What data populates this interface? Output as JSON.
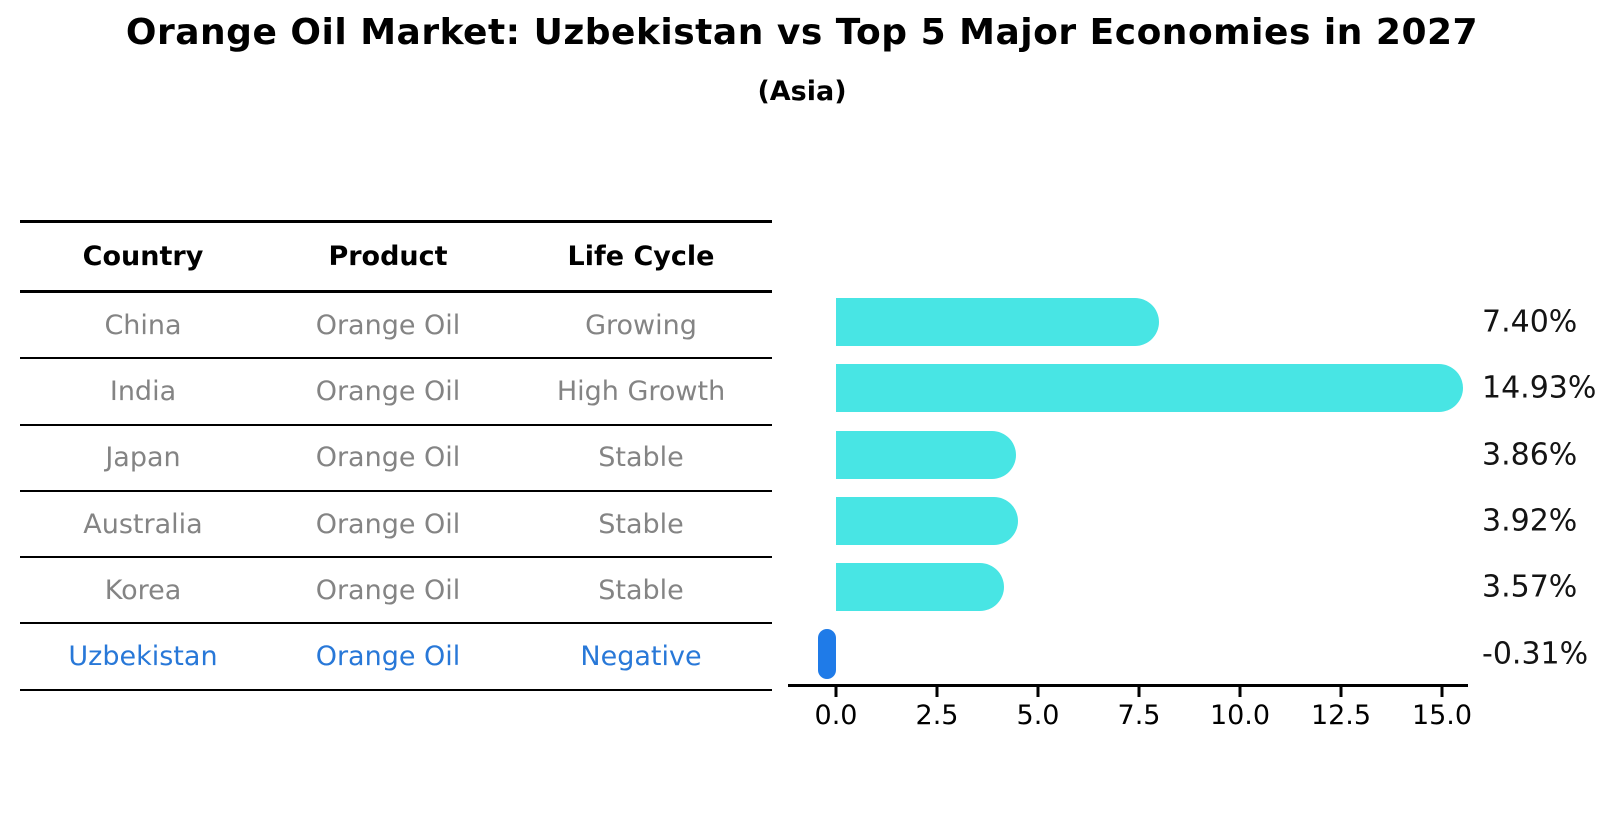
{
  "header": {
    "title": "Orange Oil Market: Uzbekistan vs Top 5 Major Economies in 2027",
    "subtitle": "(Asia)"
  },
  "table": {
    "columns": [
      "Country",
      "Product",
      "Life Cycle"
    ],
    "rows": [
      {
        "country": "China",
        "product": "Orange Oil",
        "life_cycle": "Growing",
        "highlight": false
      },
      {
        "country": "India",
        "product": "Orange Oil",
        "life_cycle": "High Growth",
        "highlight": false
      },
      {
        "country": "Japan",
        "product": "Orange Oil",
        "life_cycle": "Stable",
        "highlight": false
      },
      {
        "country": "Australia",
        "product": "Orange Oil",
        "life_cycle": "Stable",
        "highlight": false
      },
      {
        "country": "Korea",
        "product": "Orange Oil",
        "life_cycle": "Stable",
        "highlight": false
      },
      {
        "country": "Uzbekistan",
        "product": "Orange Oil",
        "life_cycle": "Negative",
        "highlight": true
      }
    ]
  },
  "chart_data": {
    "type": "bar",
    "orientation": "horizontal",
    "title": "Orange Oil Market: Uzbekistan vs Top 5 Major Economies in 2027",
    "subtitle": "(Asia)",
    "categories": [
      "China",
      "India",
      "Japan",
      "Australia",
      "Korea",
      "Uzbekistan"
    ],
    "values": [
      7.4,
      14.93,
      3.86,
      3.92,
      3.57,
      -0.31
    ],
    "value_labels": [
      "7.40%",
      "14.93%",
      "3.86%",
      "3.92%",
      "3.57%",
      "-0.31%"
    ],
    "x_ticks": [
      0.0,
      2.5,
      5.0,
      7.5,
      10.0,
      12.5,
      15.0
    ],
    "x_tick_labels": [
      "0.0",
      "2.5",
      "5.0",
      "7.5",
      "10.0",
      "12.5",
      "15.0"
    ],
    "xlim": [
      -1.2,
      15.6
    ],
    "grid": false,
    "legend": "none",
    "bar_color": "#48e5e4",
    "negative_bar_color": "#1f7be8",
    "highlight_text_color": "#2878d8"
  },
  "colors": {
    "positive_bar": "#48e5e4",
    "negative_bar": "#1f7be8",
    "highlight_text": "#2878d8",
    "table_text": "#848484",
    "heading_text": "#000000"
  }
}
